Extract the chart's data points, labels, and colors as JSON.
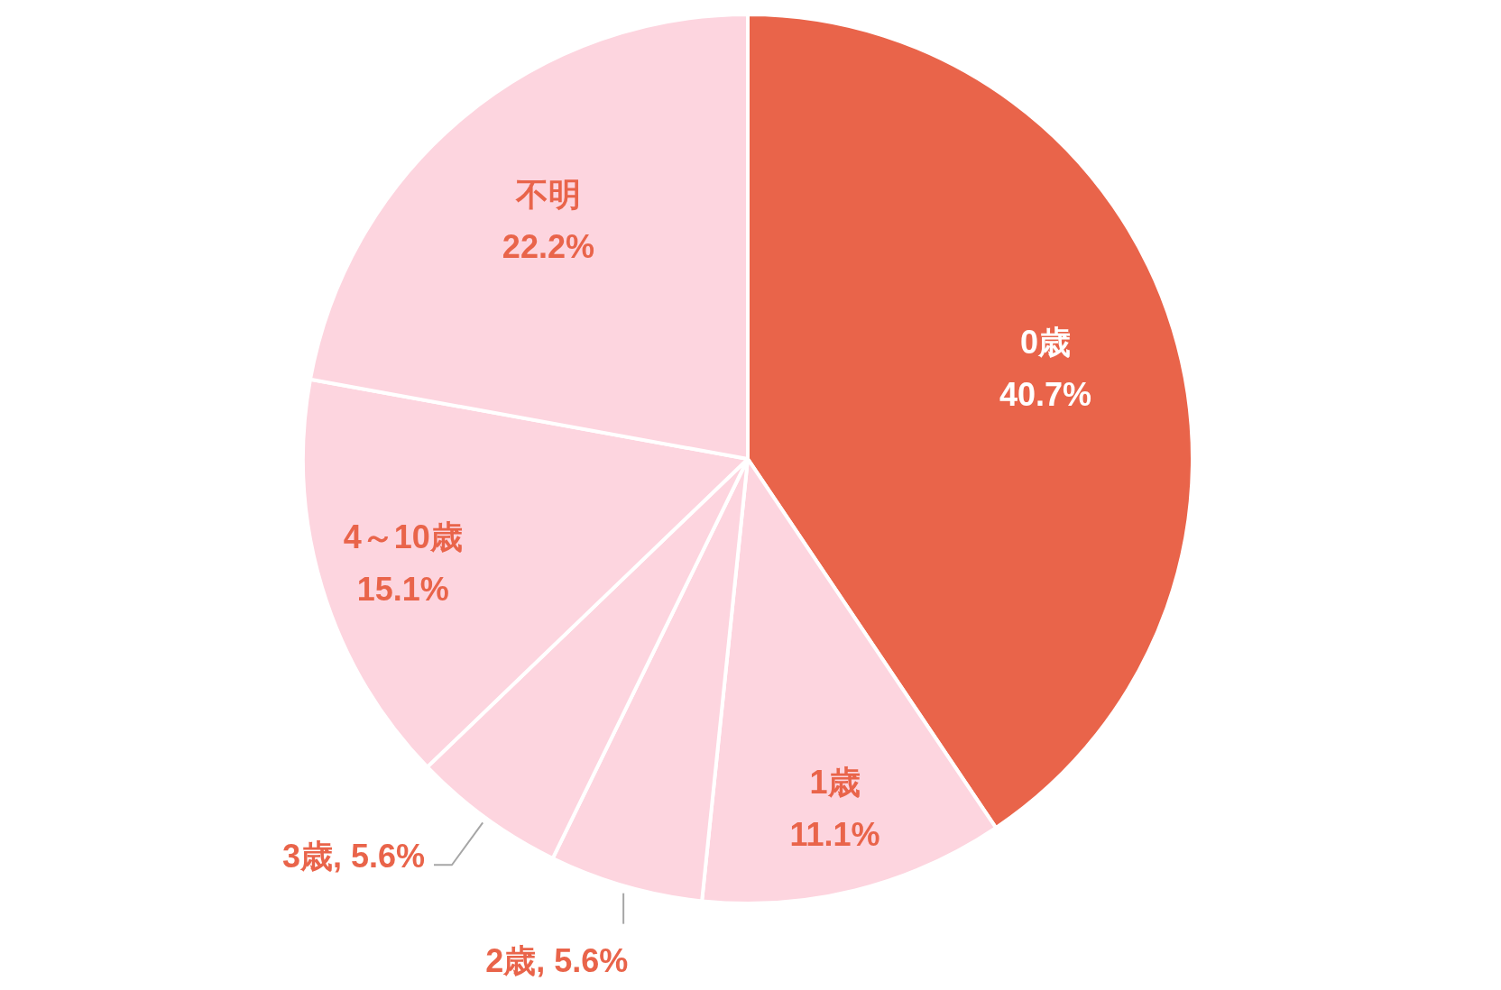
{
  "chart_data": {
    "type": "pie",
    "categories": [
      "0歳",
      "1歳",
      "2歳",
      "3歳",
      "4～10歳",
      "不明"
    ],
    "values": [
      40.7,
      11.1,
      5.6,
      5.6,
      15.1,
      22.2
    ],
    "colors": [
      "#e9644a",
      "#fdd5df",
      "#fdd5df",
      "#fdd5df",
      "#fdd5df",
      "#fdd5df"
    ],
    "value_labels": [
      "40.7%",
      "11.1%",
      "5.6%",
      "5.6%",
      "15.1%",
      "22.2%"
    ]
  }
}
